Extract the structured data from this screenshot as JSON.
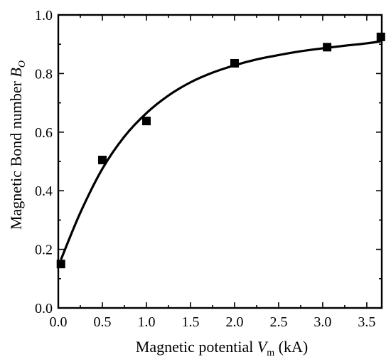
{
  "chart_data": {
    "type": "scatter",
    "title": "",
    "xlabel": {
      "text": "Magnetic potential ",
      "symbol": "V",
      "subscript": "m",
      "unit": " (kA)"
    },
    "ylabel": {
      "text": "Magnetic Bond number ",
      "symbol": "B",
      "subscript": "O"
    },
    "xlim": [
      0.0,
      3.67
    ],
    "ylim": [
      0.0,
      1.0
    ],
    "x_ticks": [
      "0.0",
      "0.5",
      "1.0",
      "1.5",
      "2.0",
      "2.5",
      "3.0",
      "3.5"
    ],
    "x_tick_values": [
      0.0,
      0.5,
      1.0,
      1.5,
      2.0,
      2.5,
      3.0,
      3.5
    ],
    "y_ticks": [
      "0.0",
      "0.2",
      "0.4",
      "0.6",
      "0.8",
      "1.0"
    ],
    "y_tick_values": [
      0.0,
      0.2,
      0.4,
      0.6,
      0.8,
      1.0
    ],
    "grid": false,
    "legend": null,
    "series": [
      {
        "kind": "markers",
        "marker": "square",
        "color": "#000000",
        "x": [
          0.03,
          0.5,
          1.0,
          2.0,
          3.05,
          3.66
        ],
        "y": [
          0.15,
          0.505,
          0.638,
          0.835,
          0.89,
          0.925
        ]
      },
      {
        "kind": "fit-curve",
        "color": "#000000",
        "x": [
          0.03,
          0.25,
          0.5,
          0.75,
          1.0,
          1.25,
          1.5,
          1.75,
          2.0,
          2.25,
          2.5,
          2.75,
          3.0,
          3.25,
          3.5,
          3.66
        ],
        "y": [
          0.165,
          0.325,
          0.475,
          0.585,
          0.665,
          0.725,
          0.77,
          0.803,
          0.828,
          0.848,
          0.863,
          0.876,
          0.886,
          0.895,
          0.903,
          0.91
        ]
      }
    ]
  }
}
